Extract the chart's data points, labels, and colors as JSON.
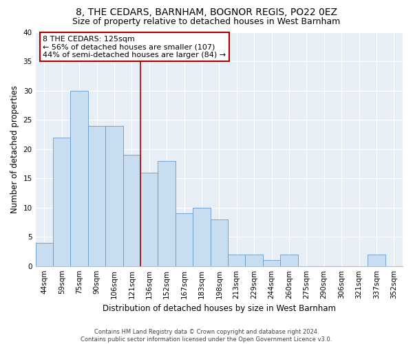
{
  "title": "8, THE CEDARS, BARNHAM, BOGNOR REGIS, PO22 0EZ",
  "subtitle": "Size of property relative to detached houses in West Barnham",
  "xlabel": "Distribution of detached houses by size in West Barnham",
  "ylabel": "Number of detached properties",
  "categories": [
    "44sqm",
    "59sqm",
    "75sqm",
    "90sqm",
    "106sqm",
    "121sqm",
    "136sqm",
    "152sqm",
    "167sqm",
    "183sqm",
    "198sqm",
    "213sqm",
    "229sqm",
    "244sqm",
    "260sqm",
    "275sqm",
    "290sqm",
    "306sqm",
    "321sqm",
    "337sqm",
    "352sqm"
  ],
  "values": [
    4,
    22,
    30,
    24,
    24,
    19,
    16,
    18,
    9,
    10,
    8,
    2,
    2,
    1,
    2,
    0,
    0,
    0,
    0,
    2,
    0
  ],
  "bar_color": "#c8ddf0",
  "bar_edge_color": "#6699cc",
  "reference_line_color": "#aa0000",
  "reference_line_x": 5.5,
  "annotation_line1": "8 THE CEDARS: 125sqm",
  "annotation_line2": "← 56% of detached houses are smaller (107)",
  "annotation_line3": "44% of semi-detached houses are larger (84) →",
  "annotation_box_facecolor": "#ffffff",
  "annotation_box_edgecolor": "#aa0000",
  "ylim": [
    0,
    40
  ],
  "yticks": [
    0,
    5,
    10,
    15,
    20,
    25,
    30,
    35,
    40
  ],
  "footer_line1": "Contains HM Land Registry data © Crown copyright and database right 2024.",
  "footer_line2": "Contains public sector information licensed under the Open Government Licence v3.0.",
  "plot_bg_color": "#e8eef5",
  "fig_bg_color": "#ffffff",
  "grid_color": "#ffffff",
  "title_fontsize": 10,
  "subtitle_fontsize": 9,
  "axis_label_fontsize": 8.5,
  "tick_fontsize": 7.5
}
